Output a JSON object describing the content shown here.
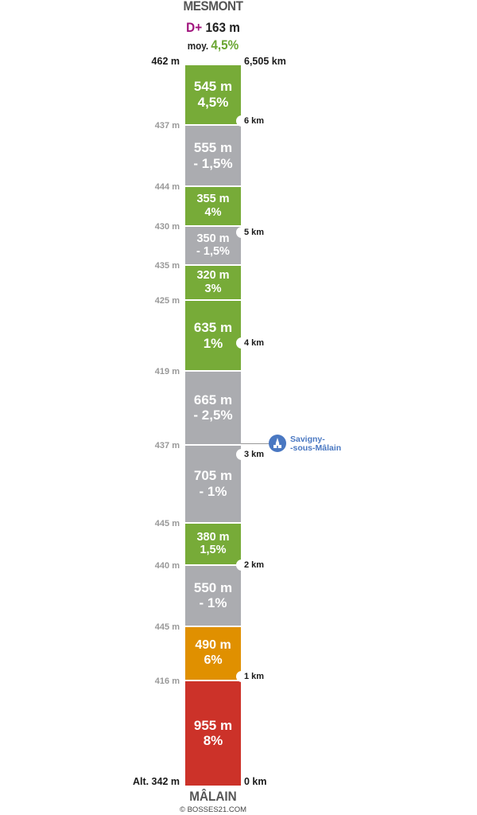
{
  "header": {
    "summit": "MESMONT",
    "dplus_label": "D+",
    "dplus_value": "163 m",
    "avg_label": "moy.",
    "avg_value": "4,5%"
  },
  "footer": {
    "start": "MÂLAIN",
    "copyright": "© BOSSES21.COM"
  },
  "top_left_alt": "462 m",
  "top_right_km": "6,505 km",
  "bottom_left_alt": "Alt. 342 m",
  "bottom_right_km": "0 km",
  "colors": {
    "green": "#77ab38",
    "grey": "#abacb0",
    "orange": "#e09000",
    "red": "#cc3229",
    "dplus": "#a0127c",
    "poi": "#4a78c2"
  },
  "chart_data": {
    "type": "bar",
    "orientation": "vertical-stack",
    "total_length_km": 6.505,
    "total_gain_m": 163,
    "average_grade_pct": 4.5,
    "start_altitude_m": 342,
    "end_altitude_m": 462,
    "segments": [
      {
        "length_m": 955,
        "length_label": "955 m",
        "grade_label": "8%",
        "color": "red"
      },
      {
        "length_m": 490,
        "length_label": "490 m",
        "grade_label": "6%",
        "color": "orange"
      },
      {
        "length_m": 550,
        "length_label": "550 m",
        "grade_label": "- 1%",
        "color": "grey"
      },
      {
        "length_m": 380,
        "length_label": "380 m",
        "grade_label": "1,5%",
        "color": "green"
      },
      {
        "length_m": 705,
        "length_label": "705 m",
        "grade_label": "- 1%",
        "color": "grey"
      },
      {
        "length_m": 665,
        "length_label": "665 m",
        "grade_label": "- 2,5%",
        "color": "grey"
      },
      {
        "length_m": 635,
        "length_label": "635 m",
        "grade_label": "1%",
        "color": "green"
      },
      {
        "length_m": 320,
        "length_label": "320 m",
        "grade_label": "3%",
        "color": "green"
      },
      {
        "length_m": 350,
        "length_label": "350 m",
        "grade_label": "- 1,5%",
        "color": "grey"
      },
      {
        "length_m": 355,
        "length_label": "355 m",
        "grade_label": "4%",
        "color": "green"
      },
      {
        "length_m": 555,
        "length_label": "555 m",
        "grade_label": "- 1,5%",
        "color": "grey"
      },
      {
        "length_m": 545,
        "length_label": "545 m",
        "grade_label": "4,5%",
        "color": "green"
      }
    ],
    "boundary_altitudes": [
      {
        "label": "416 m",
        "after_segment": 0
      },
      {
        "label": "445 m",
        "after_segment": 1
      },
      {
        "label": "440 m",
        "after_segment": 2
      },
      {
        "label": "445 m",
        "after_segment": 3
      },
      {
        "label": "437 m",
        "after_segment": 4
      },
      {
        "label": "419 m",
        "after_segment": 5
      },
      {
        "label": "425 m",
        "after_segment": 6
      },
      {
        "label": "435 m",
        "after_segment": 7
      },
      {
        "label": "430 m",
        "after_segment": 8
      },
      {
        "label": "444 m",
        "after_segment": 9
      },
      {
        "label": "437 m",
        "after_segment": 10
      }
    ],
    "km_markers": [
      {
        "km": 1,
        "label": "1 km"
      },
      {
        "km": 2,
        "label": "2 km"
      },
      {
        "km": 3,
        "label": "3 km"
      },
      {
        "km": 4,
        "label": "4 km"
      },
      {
        "km": 5,
        "label": "5 km"
      },
      {
        "km": 6,
        "label": "6 km"
      }
    ],
    "poi": {
      "km": 3.35,
      "label_line1": "Savigny-",
      "label_line2": "-sous-Mâlain",
      "icon": "church-icon"
    }
  }
}
